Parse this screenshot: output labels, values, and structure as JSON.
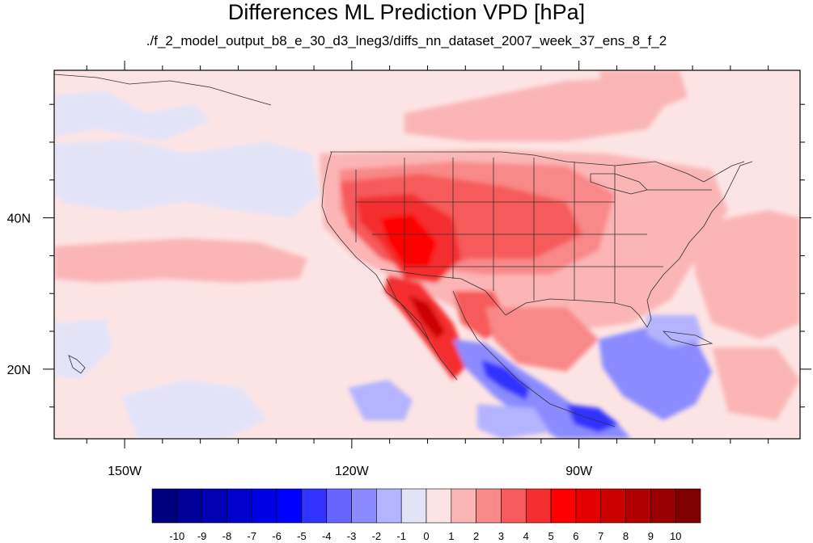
{
  "title": "Differences ML Prediction VPD [hPa]",
  "subtitle": "./f_2_model_output_b8_e_30_d3_lneg3/diffs_nn_dataset_2007_week_37_ens_8_f_2",
  "axes": {
    "x_ticks": [
      {
        "value": -150,
        "label": "150W"
      },
      {
        "value": -120,
        "label": "120W"
      },
      {
        "value": -90,
        "label": "90W"
      }
    ],
    "y_ticks": [
      {
        "value": 40,
        "label": "40N"
      },
      {
        "value": 20,
        "label": "20N"
      }
    ],
    "lon_range": [
      -159.3,
      -60.8
    ],
    "lat_range": [
      10.8,
      59.5
    ]
  },
  "colorbar": {
    "labels": [
      "-10",
      "-9",
      "-8",
      "-7",
      "-6",
      "-5",
      "-4",
      "-3",
      "-2",
      "-1",
      "0",
      "1",
      "2",
      "3",
      "4",
      "5",
      "6",
      "7",
      "8",
      "9",
      "10"
    ],
    "colors": [
      "#00007f",
      "#000099",
      "#0000b2",
      "#0000cc",
      "#0000e5",
      "#0000ff",
      "#3333ff",
      "#6666ff",
      "#8b8bff",
      "#b3b3ff",
      "#e3e3f8",
      "#fde4e4",
      "#fbb5b5",
      "#f98888",
      "#f75a5a",
      "#f42e2e",
      "#ff0000",
      "#e50000",
      "#cc0000",
      "#b20000",
      "#990000",
      "#7f0000"
    ]
  },
  "background_color": "#fde4e4"
}
